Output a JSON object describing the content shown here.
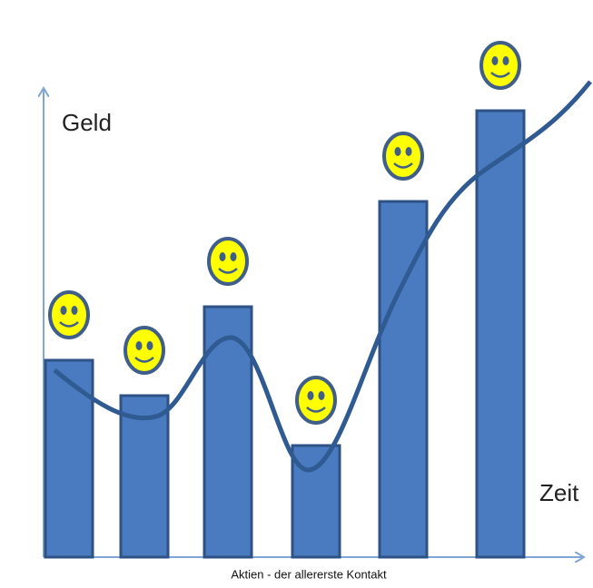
{
  "chart_data": {
    "type": "bar",
    "title": "Aktien - der allererste Kontakt",
    "y_label": "Geld",
    "x_label": "Zeit",
    "values": [
      217,
      178,
      276,
      123,
      392,
      492
    ],
    "color": "#4a7abf",
    "ylim": [
      0,
      520
    ]
  }
}
